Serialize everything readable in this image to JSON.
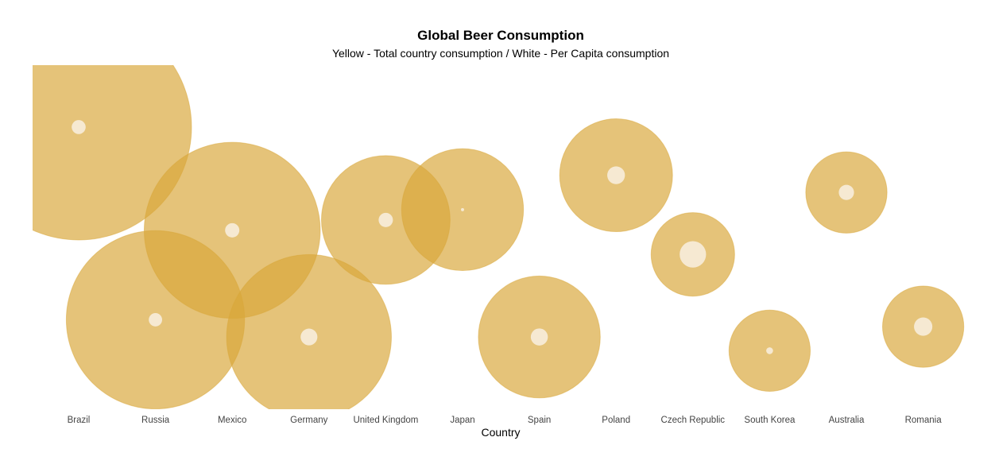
{
  "chart_data": {
    "type": "bubble",
    "title": "Global Beer Consumption",
    "subtitle": "Yellow - Total country consumption / White - Per Capita consumption",
    "xlabel": "Country",
    "ylabel": "",
    "grid": false,
    "legend": "none",
    "colors": {
      "total": "#d9a73a",
      "per_capita": "#f7eddb"
    },
    "categories": [
      "Brazil",
      "Russia",
      "Mexico",
      "Germany",
      "United Kingdom",
      "Japan",
      "Spain",
      "Poland",
      "Czech Republic",
      "South Korea",
      "Australia",
      "Romania"
    ],
    "y_position": [
      0.82,
      0.26,
      0.52,
      0.21,
      0.55,
      0.58,
      0.21,
      0.68,
      0.45,
      0.17,
      0.63,
      0.24
    ],
    "total_consumption_relative": [
      1.0,
      0.79,
      0.78,
      0.73,
      0.57,
      0.54,
      0.54,
      0.5,
      0.37,
      0.36,
      0.36,
      0.36
    ],
    "per_capita_relative": [
      0.45,
      0.43,
      0.46,
      0.54,
      0.46,
      0.1,
      0.55,
      0.57,
      0.85,
      0.22,
      0.49,
      0.59
    ]
  }
}
